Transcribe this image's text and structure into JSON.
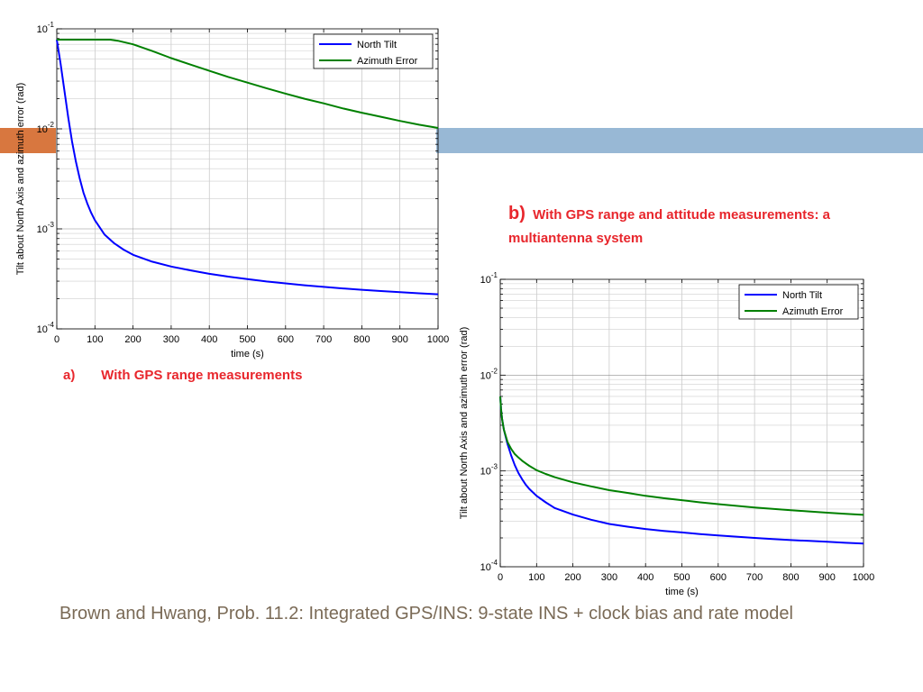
{
  "slide": {
    "colors": {
      "left_band": "#d8773f",
      "right_band": "#98b8d5",
      "caption": "#e8262c",
      "footer": "#7a6a56"
    },
    "caption_a": {
      "label": "a)",
      "text": "With GPS range measurements"
    },
    "caption_b": {
      "label": "b)",
      "text": "With GPS range and attitude measurements: a multiantenna system"
    },
    "footer": "Brown and Hwang, Prob. 11.2: Integrated GPS/INS: 9-state INS + clock bias and rate model"
  },
  "chart_data": [
    {
      "type": "line",
      "title": "",
      "xlabel": "time (s)",
      "ylabel": "Tilt about North Axis and azimuth error (rad)",
      "xlim": [
        0,
        1000
      ],
      "ylim": [
        0.0001,
        0.1
      ],
      "yscale": "log",
      "xticks": [
        "0",
        "100",
        "200",
        "300",
        "400",
        "500",
        "600",
        "700",
        "800",
        "900",
        "1000"
      ],
      "ytick_exponents": [
        "-4",
        "-3",
        "-2",
        "-1"
      ],
      "grid": true,
      "legend": "top-right",
      "series": [
        {
          "name": "North Tilt",
          "color": "#0000ff",
          "x": [
            0,
            10,
            20,
            30,
            40,
            50,
            60,
            70,
            80,
            90,
            100,
            125,
            150,
            175,
            200,
            250,
            300,
            350,
            400,
            450,
            500,
            550,
            600,
            650,
            700,
            750,
            800,
            850,
            900,
            950,
            1000
          ],
          "y": [
            0.078,
            0.045,
            0.024,
            0.013,
            0.0075,
            0.0047,
            0.0032,
            0.0023,
            0.0018,
            0.00145,
            0.00122,
            0.00088,
            0.00072,
            0.00062,
            0.00055,
            0.00047,
            0.00042,
            0.000385,
            0.000355,
            0.000333,
            0.000315,
            0.000298,
            0.000285,
            0.000273,
            0.000263,
            0.000254,
            0.000246,
            0.000239,
            0.000233,
            0.000227,
            0.000222
          ]
        },
        {
          "name": "Azimuth Error",
          "color": "#008000",
          "x": [
            0,
            50,
            100,
            140,
            160,
            200,
            250,
            300,
            350,
            400,
            450,
            500,
            550,
            600,
            650,
            700,
            750,
            800,
            850,
            900,
            950,
            1000
          ],
          "y": [
            0.078,
            0.078,
            0.078,
            0.078,
            0.076,
            0.07,
            0.06,
            0.051,
            0.044,
            0.038,
            0.033,
            0.029,
            0.0255,
            0.0225,
            0.02,
            0.018,
            0.016,
            0.0145,
            0.0132,
            0.012,
            0.011,
            0.0102
          ]
        }
      ]
    },
    {
      "type": "line",
      "title": "",
      "xlabel": "time (s)",
      "ylabel": "Tilt about North Axis and azimuth error (rad)",
      "xlim": [
        0,
        1000
      ],
      "ylim": [
        0.0001,
        0.1
      ],
      "yscale": "log",
      "xticks": [
        "0",
        "100",
        "200",
        "300",
        "400",
        "500",
        "600",
        "700",
        "800",
        "900",
        "1000"
      ],
      "ytick_exponents": [
        "-4",
        "-3",
        "-2",
        "-1"
      ],
      "grid": true,
      "legend": "top-right",
      "series": [
        {
          "name": "North Tilt",
          "color": "#0000ff",
          "x": [
            0,
            2,
            5,
            10,
            20,
            30,
            40,
            50,
            60,
            70,
            80,
            100,
            125,
            150,
            200,
            250,
            300,
            350,
            400,
            450,
            500,
            550,
            600,
            650,
            700,
            750,
            800,
            850,
            900,
            950,
            1000
          ],
          "y": [
            0.006,
            0.0045,
            0.0035,
            0.0027,
            0.0019,
            0.00145,
            0.00115,
            0.00095,
            0.00082,
            0.00072,
            0.00065,
            0.00055,
            0.00047,
            0.00041,
            0.00035,
            0.00031,
            0.00028,
            0.000262,
            0.000248,
            0.000237,
            0.000228,
            0.000219,
            0.000212,
            0.000206,
            0.0002,
            0.000195,
            0.00019,
            0.000186,
            0.000182,
            0.000178,
            0.000175
          ]
        },
        {
          "name": "Azimuth Error",
          "color": "#008000",
          "x": [
            0,
            2,
            5,
            10,
            20,
            30,
            40,
            50,
            60,
            70,
            80,
            100,
            125,
            150,
            200,
            250,
            300,
            350,
            400,
            450,
            500,
            550,
            600,
            650,
            700,
            750,
            800,
            850,
            900,
            950,
            1000
          ],
          "y": [
            0.006,
            0.0045,
            0.0035,
            0.0027,
            0.002,
            0.0017,
            0.0015,
            0.00138,
            0.00128,
            0.0012,
            0.00113,
            0.00102,
            0.00093,
            0.00086,
            0.00076,
            0.00069,
            0.00063,
            0.00059,
            0.00055,
            0.00052,
            0.000495,
            0.00047,
            0.00045,
            0.000432,
            0.000416,
            0.000402,
            0.00039,
            0.000378,
            0.000367,
            0.000357,
            0.000348
          ]
        }
      ]
    }
  ]
}
